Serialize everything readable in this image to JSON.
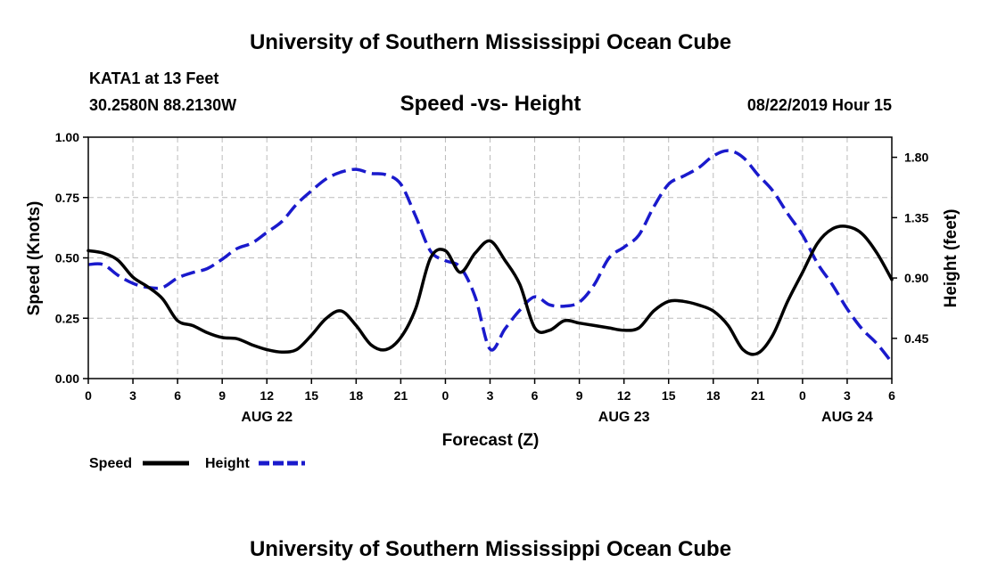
{
  "header": {
    "title": "University of Southern Mississippi Ocean Cube",
    "station": "KATA1 at 13 Feet",
    "coords": "30.2580N 88.2130W",
    "chart_title": "Speed -vs- Height",
    "datetime": "08/22/2019 Hour 15"
  },
  "footer": {
    "title": "University of Southern Mississippi Ocean Cube"
  },
  "colors": {
    "speed": "#000000",
    "height": "#1a1acc",
    "grid": "#bbbbbb"
  },
  "chart_data": {
    "type": "line",
    "title": "Speed -vs- Height",
    "xlabel": "Forecast (Z)",
    "ylabel": "Speed (Knots)",
    "y2label": "Height (feet)",
    "xlim": [
      0,
      54
    ],
    "ylim": [
      0,
      1.0
    ],
    "y2lim": [
      0.15,
      1.95
    ],
    "grid": true,
    "legend_position": "bottom-left",
    "x_ticks": [
      0,
      3,
      6,
      9,
      12,
      15,
      18,
      21,
      24,
      27,
      30,
      33,
      36,
      39,
      42,
      45,
      48,
      51,
      54
    ],
    "x_tick_labels": [
      "0",
      "3",
      "6",
      "9",
      "12",
      "15",
      "18",
      "21",
      "0",
      "3",
      "6",
      "9",
      "12",
      "15",
      "18",
      "21",
      "0",
      "3",
      "6"
    ],
    "y_ticks": [
      0,
      0.25,
      0.5,
      0.75,
      1.0
    ],
    "y_tick_labels": [
      "0.00",
      "0.25",
      "0.50",
      "0.75",
      "1.00"
    ],
    "y2_ticks": [
      0.45,
      0.9,
      1.35,
      1.8
    ],
    "y2_tick_labels": [
      "0.45",
      "0.90",
      "1.35",
      "1.80"
    ],
    "date_labels": [
      {
        "x": 12,
        "label": "AUG 22"
      },
      {
        "x": 36,
        "label": "AUG 23"
      },
      {
        "x": 51,
        "label": "AUG 24"
      }
    ],
    "series": [
      {
        "name": "Speed",
        "axis": "left",
        "style": "solid",
        "x": [
          0,
          1,
          2,
          3,
          4,
          5,
          6,
          7,
          8,
          9,
          10,
          11,
          12,
          13,
          14,
          15,
          16,
          17,
          18,
          19,
          20,
          21,
          22,
          23,
          24,
          25,
          26,
          27,
          28,
          29,
          30,
          31,
          32,
          33,
          34,
          35,
          36,
          37,
          38,
          39,
          40,
          41,
          42,
          43,
          44,
          45,
          46,
          47,
          48,
          49,
          50,
          51,
          52,
          53,
          54
        ],
        "values": [
          0.53,
          0.52,
          0.49,
          0.42,
          0.38,
          0.33,
          0.24,
          0.22,
          0.19,
          0.17,
          0.165,
          0.14,
          0.12,
          0.11,
          0.12,
          0.18,
          0.25,
          0.28,
          0.22,
          0.14,
          0.12,
          0.17,
          0.29,
          0.5,
          0.53,
          0.44,
          0.52,
          0.57,
          0.49,
          0.39,
          0.21,
          0.2,
          0.24,
          0.23,
          0.22,
          0.21,
          0.2,
          0.21,
          0.28,
          0.32,
          0.32,
          0.305,
          0.28,
          0.22,
          0.12,
          0.105,
          0.18,
          0.32,
          0.44,
          0.56,
          0.62,
          0.63,
          0.6,
          0.52,
          0.41
        ]
      },
      {
        "name": "Height",
        "axis": "right",
        "style": "dashed",
        "x": [
          0,
          1,
          2,
          3,
          4,
          5,
          6,
          7,
          8,
          9,
          10,
          11,
          12,
          13,
          14,
          15,
          16,
          17,
          18,
          19,
          20,
          21,
          22,
          23,
          24,
          25,
          26,
          27,
          28,
          29,
          30,
          31,
          32,
          33,
          34,
          35,
          36,
          37,
          38,
          39,
          40,
          41,
          42,
          43,
          44,
          45,
          46,
          47,
          48,
          49,
          50,
          51,
          52,
          53,
          54
        ],
        "values": [
          1.0,
          1.0,
          0.92,
          0.86,
          0.83,
          0.83,
          0.9,
          0.94,
          0.97,
          1.04,
          1.12,
          1.16,
          1.24,
          1.32,
          1.45,
          1.55,
          1.64,
          1.69,
          1.71,
          1.68,
          1.67,
          1.6,
          1.36,
          1.1,
          1.03,
          0.98,
          0.76,
          0.37,
          0.52,
          0.66,
          0.76,
          0.7,
          0.69,
          0.72,
          0.85,
          1.05,
          1.13,
          1.22,
          1.43,
          1.6,
          1.66,
          1.72,
          1.81,
          1.85,
          1.8,
          1.67,
          1.55,
          1.38,
          1.22,
          1.01,
          0.85,
          0.67,
          0.52,
          0.41,
          0.27
        ]
      }
    ]
  }
}
